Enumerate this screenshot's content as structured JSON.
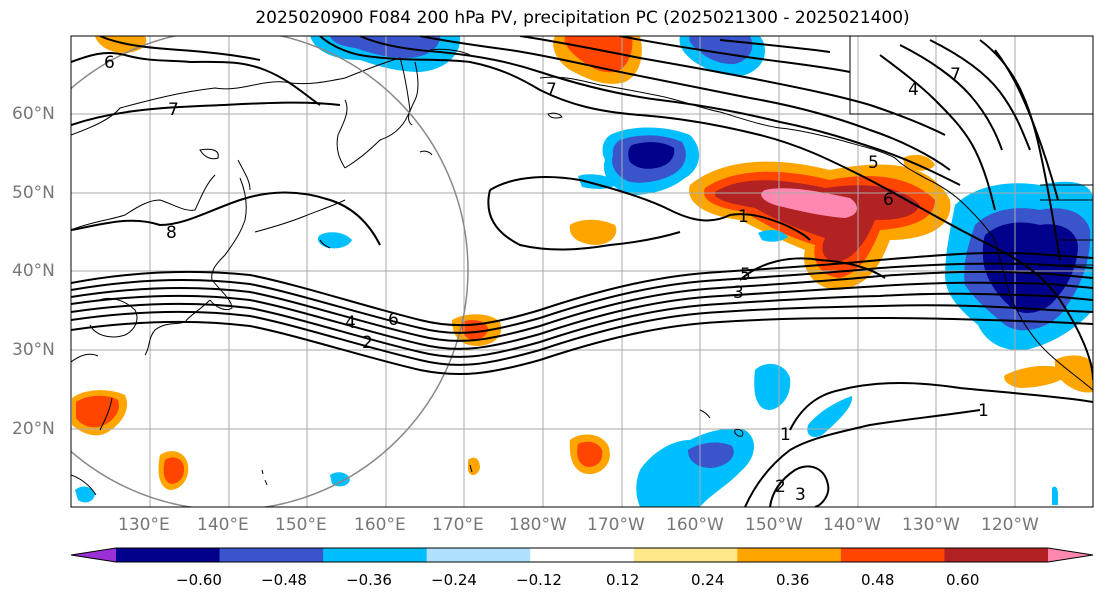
{
  "title": "2025020900 F084 200 hPa PV, precipitation PC (2025021300 - 2025021400)",
  "lat_labels": [
    "60°N",
    "50°N",
    "40°N",
    "30°N",
    "20°N"
  ],
  "lon_labels": [
    "130°E",
    "140°E",
    "150°E",
    "160°E",
    "170°E",
    "180°W",
    "170°W",
    "160°W",
    "150°W",
    "140°W",
    "130°W",
    "120°W"
  ],
  "colorbar": {
    "tick_labels": [
      "−0.60",
      "−0.48",
      "−0.36",
      "−0.24",
      "−0.12",
      "0.12",
      "0.24",
      "0.36",
      "0.48",
      "0.60"
    ],
    "colors": [
      "#9b30d6",
      "#00008b",
      "#3a55cc",
      "#00bfff",
      "#b0e2ff",
      "#ffffff",
      "#ffe88a",
      "#ffa500",
      "#ff4500",
      "#b22222",
      "#ff88b0"
    ]
  },
  "contour_labels": [
    "6",
    "7",
    "8",
    "7",
    "7",
    "4",
    "5",
    "6",
    "1",
    "4",
    "6",
    "2",
    "5",
    "3",
    "1",
    "1",
    "2",
    "3"
  ]
}
